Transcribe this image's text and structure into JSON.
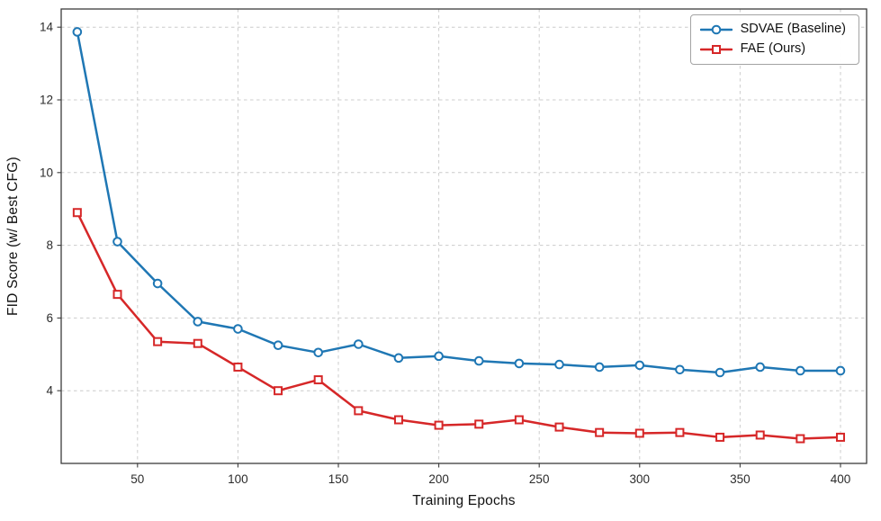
{
  "chart_data": {
    "type": "line",
    "x": [
      20,
      40,
      60,
      80,
      100,
      120,
      140,
      160,
      180,
      200,
      220,
      240,
      260,
      280,
      300,
      320,
      340,
      360,
      380,
      400
    ],
    "series": [
      {
        "name": "SDVAE (Baseline)",
        "color": "#1f77b4",
        "marker": "circle",
        "values": [
          13.87,
          8.1,
          6.95,
          5.9,
          5.7,
          5.25,
          5.05,
          5.28,
          4.9,
          4.95,
          4.82,
          4.75,
          4.72,
          4.65,
          4.7,
          4.58,
          4.5,
          4.65,
          4.55,
          4.55
        ]
      },
      {
        "name": "FAE (Ours)",
        "color": "#d62728",
        "marker": "square",
        "values": [
          8.9,
          6.65,
          5.35,
          5.3,
          4.65,
          4.0,
          4.3,
          3.45,
          3.2,
          3.05,
          3.08,
          3.2,
          3.0,
          2.85,
          2.83,
          2.85,
          2.72,
          2.78,
          2.68,
          2.72
        ]
      }
    ],
    "title": "",
    "xlabel": "Training Epochs",
    "ylabel": "FID Score (w/ Best CFG)",
    "xlim": [
      12,
      413
    ],
    "ylim": [
      2.0,
      14.5
    ],
    "xticks": [
      50,
      100,
      150,
      200,
      250,
      300,
      350,
      400
    ],
    "yticks": [
      4,
      6,
      8,
      10,
      12,
      14
    ],
    "grid": true,
    "grid_style": "dashed",
    "legend_position": "top-right"
  },
  "style": {
    "grid_color": "#cccccc",
    "spine_color": "#3c3c3c",
    "tick_label_color": "#2b2b2b",
    "background": "#ffffff"
  }
}
